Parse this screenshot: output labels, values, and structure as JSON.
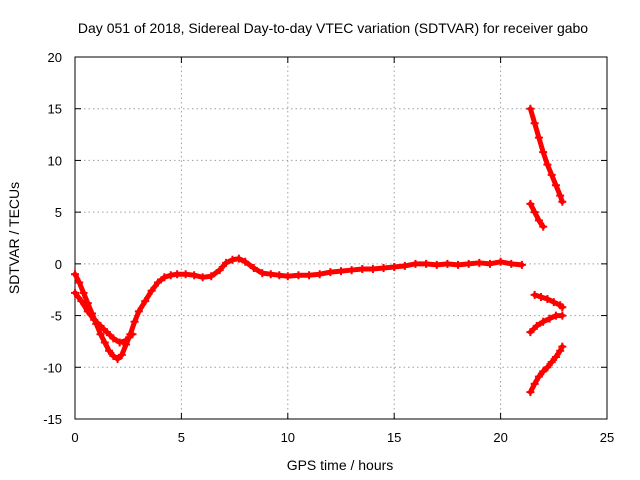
{
  "chart_data": {
    "type": "scatter",
    "title": "Day 051 of 2018, Sidereal Day-to-day VTEC variation (SDTVAR) for receiver gabo",
    "xlabel": "GPS time / hours",
    "ylabel": "SDTVAR / TECUs",
    "xlim": [
      0,
      25
    ],
    "ylim": [
      -15,
      20
    ],
    "x_ticks": [
      0,
      5,
      10,
      15,
      20,
      25
    ],
    "y_ticks": [
      -15,
      -10,
      -5,
      0,
      5,
      10,
      15,
      20
    ],
    "x_tick_labels": [
      "0",
      "5",
      "10",
      "15",
      "20",
      "25"
    ],
    "y_tick_labels": [
      "-15",
      "-10",
      "-5",
      "0",
      "5",
      "10",
      "15",
      "20"
    ],
    "grid": true,
    "color": "#ff0000",
    "series": [
      {
        "x": [
          0.0,
          0.2,
          0.4,
          0.6,
          0.8,
          1.0,
          1.2,
          1.4,
          1.6,
          1.8,
          2.0,
          2.2,
          2.4,
          2.6,
          2.8,
          3.0,
          3.3,
          3.6,
          3.9,
          4.2,
          4.5,
          4.8,
          5.2,
          5.6,
          6.0,
          6.4,
          6.8,
          7.1,
          7.4,
          7.7,
          8.0,
          8.4,
          8.8,
          9.2,
          9.6,
          10.0,
          10.5,
          11.0,
          11.5,
          12.0,
          12.5,
          13.0,
          13.5,
          14.0,
          14.5,
          15.0,
          15.5,
          16.0,
          16.5,
          17.0,
          17.5,
          18.0,
          18.5,
          19.0,
          19.5,
          20.0,
          20.5,
          21.0
        ],
        "y": [
          -1.0,
          -1.8,
          -2.8,
          -3.8,
          -4.8,
          -5.8,
          -6.8,
          -7.6,
          -8.4,
          -8.9,
          -9.2,
          -8.8,
          -7.8,
          -6.8,
          -5.6,
          -4.6,
          -3.6,
          -2.6,
          -1.8,
          -1.3,
          -1.1,
          -1.0,
          -1.0,
          -1.1,
          -1.3,
          -1.2,
          -0.6,
          0.1,
          0.4,
          0.5,
          0.2,
          -0.4,
          -0.9,
          -1.0,
          -1.1,
          -1.2,
          -1.1,
          -1.1,
          -1.0,
          -0.8,
          -0.7,
          -0.6,
          -0.5,
          -0.5,
          -0.4,
          -0.3,
          -0.2,
          0.0,
          0.0,
          -0.1,
          0.0,
          -0.1,
          0.0,
          0.1,
          0.0,
          0.2,
          0.0,
          -0.1
        ]
      },
      {
        "x": [
          0.0,
          0.3,
          0.6,
          0.9,
          1.2,
          1.5,
          1.8,
          2.1,
          2.4,
          2.7
        ],
        "y": [
          -2.8,
          -3.6,
          -4.6,
          -5.4,
          -6.0,
          -6.6,
          -7.2,
          -7.6,
          -7.4,
          -6.8
        ]
      },
      {
        "x": [
          21.4,
          21.6,
          21.8,
          22.0,
          22.2,
          22.4,
          22.6,
          22.8,
          22.9
        ],
        "y": [
          15.0,
          13.6,
          12.2,
          10.8,
          9.6,
          8.6,
          7.6,
          6.6,
          6.0
        ]
      },
      {
        "x": [
          21.4,
          21.6,
          21.8,
          22.0
        ],
        "y": [
          5.8,
          5.0,
          4.2,
          3.6
        ]
      },
      {
        "x": [
          21.6,
          21.9,
          22.2,
          22.5,
          22.8,
          22.9
        ],
        "y": [
          -3.0,
          -3.2,
          -3.4,
          -3.7,
          -4.0,
          -4.2
        ]
      },
      {
        "x": [
          21.4,
          21.7,
          22.0,
          22.3,
          22.6,
          22.9
        ],
        "y": [
          -6.6,
          -6.0,
          -5.6,
          -5.3,
          -5.0,
          -5.0
        ]
      },
      {
        "x": [
          21.4,
          21.6,
          21.8,
          22.0,
          22.2,
          22.4,
          22.6,
          22.8,
          22.9
        ],
        "y": [
          -12.4,
          -11.6,
          -10.9,
          -10.4,
          -10.0,
          -9.5,
          -9.0,
          -8.4,
          -8.0
        ]
      }
    ]
  }
}
